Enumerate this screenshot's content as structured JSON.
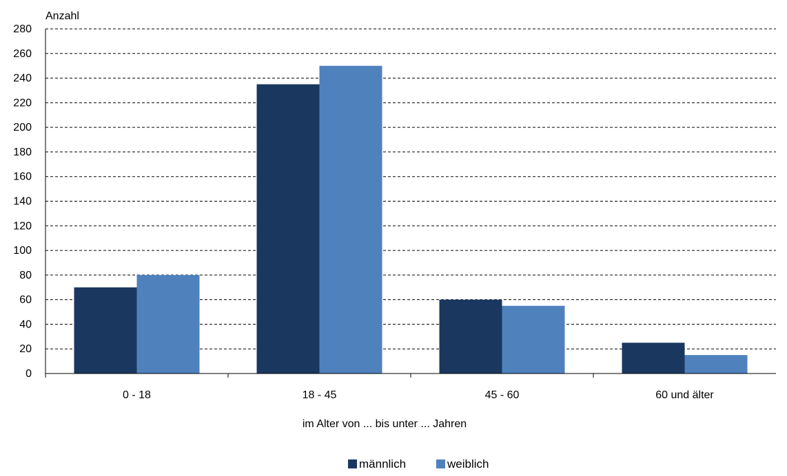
{
  "chart_data": {
    "type": "bar",
    "title": "",
    "ylabel": "Anzahl",
    "xlabel": "im Alter von ... bis unter ... Jahren",
    "categories": [
      "0 - 18",
      "18 - 45",
      "45 - 60",
      "60 und älter"
    ],
    "series": [
      {
        "name": "männlich",
        "color": "#1a385f",
        "values": [
          70,
          235,
          60,
          25
        ]
      },
      {
        "name": "weiblich",
        "color": "#4f81bd",
        "values": [
          80,
          250,
          55,
          15
        ]
      }
    ],
    "ylim": [
      0,
      280
    ],
    "ytick_step": 20,
    "grid": true,
    "grid_style": "dashed",
    "legend_position": "bottom-center"
  }
}
